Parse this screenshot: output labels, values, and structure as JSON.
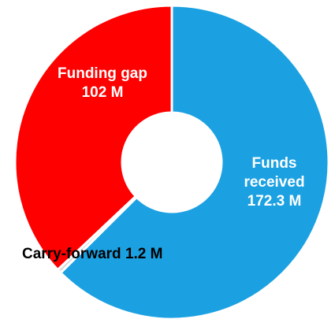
{
  "chart_data": {
    "type": "donut",
    "categories": [
      "Funds received",
      "Carry-forward",
      "Funding gap"
    ],
    "values": [
      172.3,
      1.2,
      102
    ],
    "value_labels": [
      "172.3 M",
      "1.2 M",
      "102 M"
    ],
    "colors": [
      "#1ba1e2",
      "#d9d9d9",
      "#ff0000"
    ]
  }
}
